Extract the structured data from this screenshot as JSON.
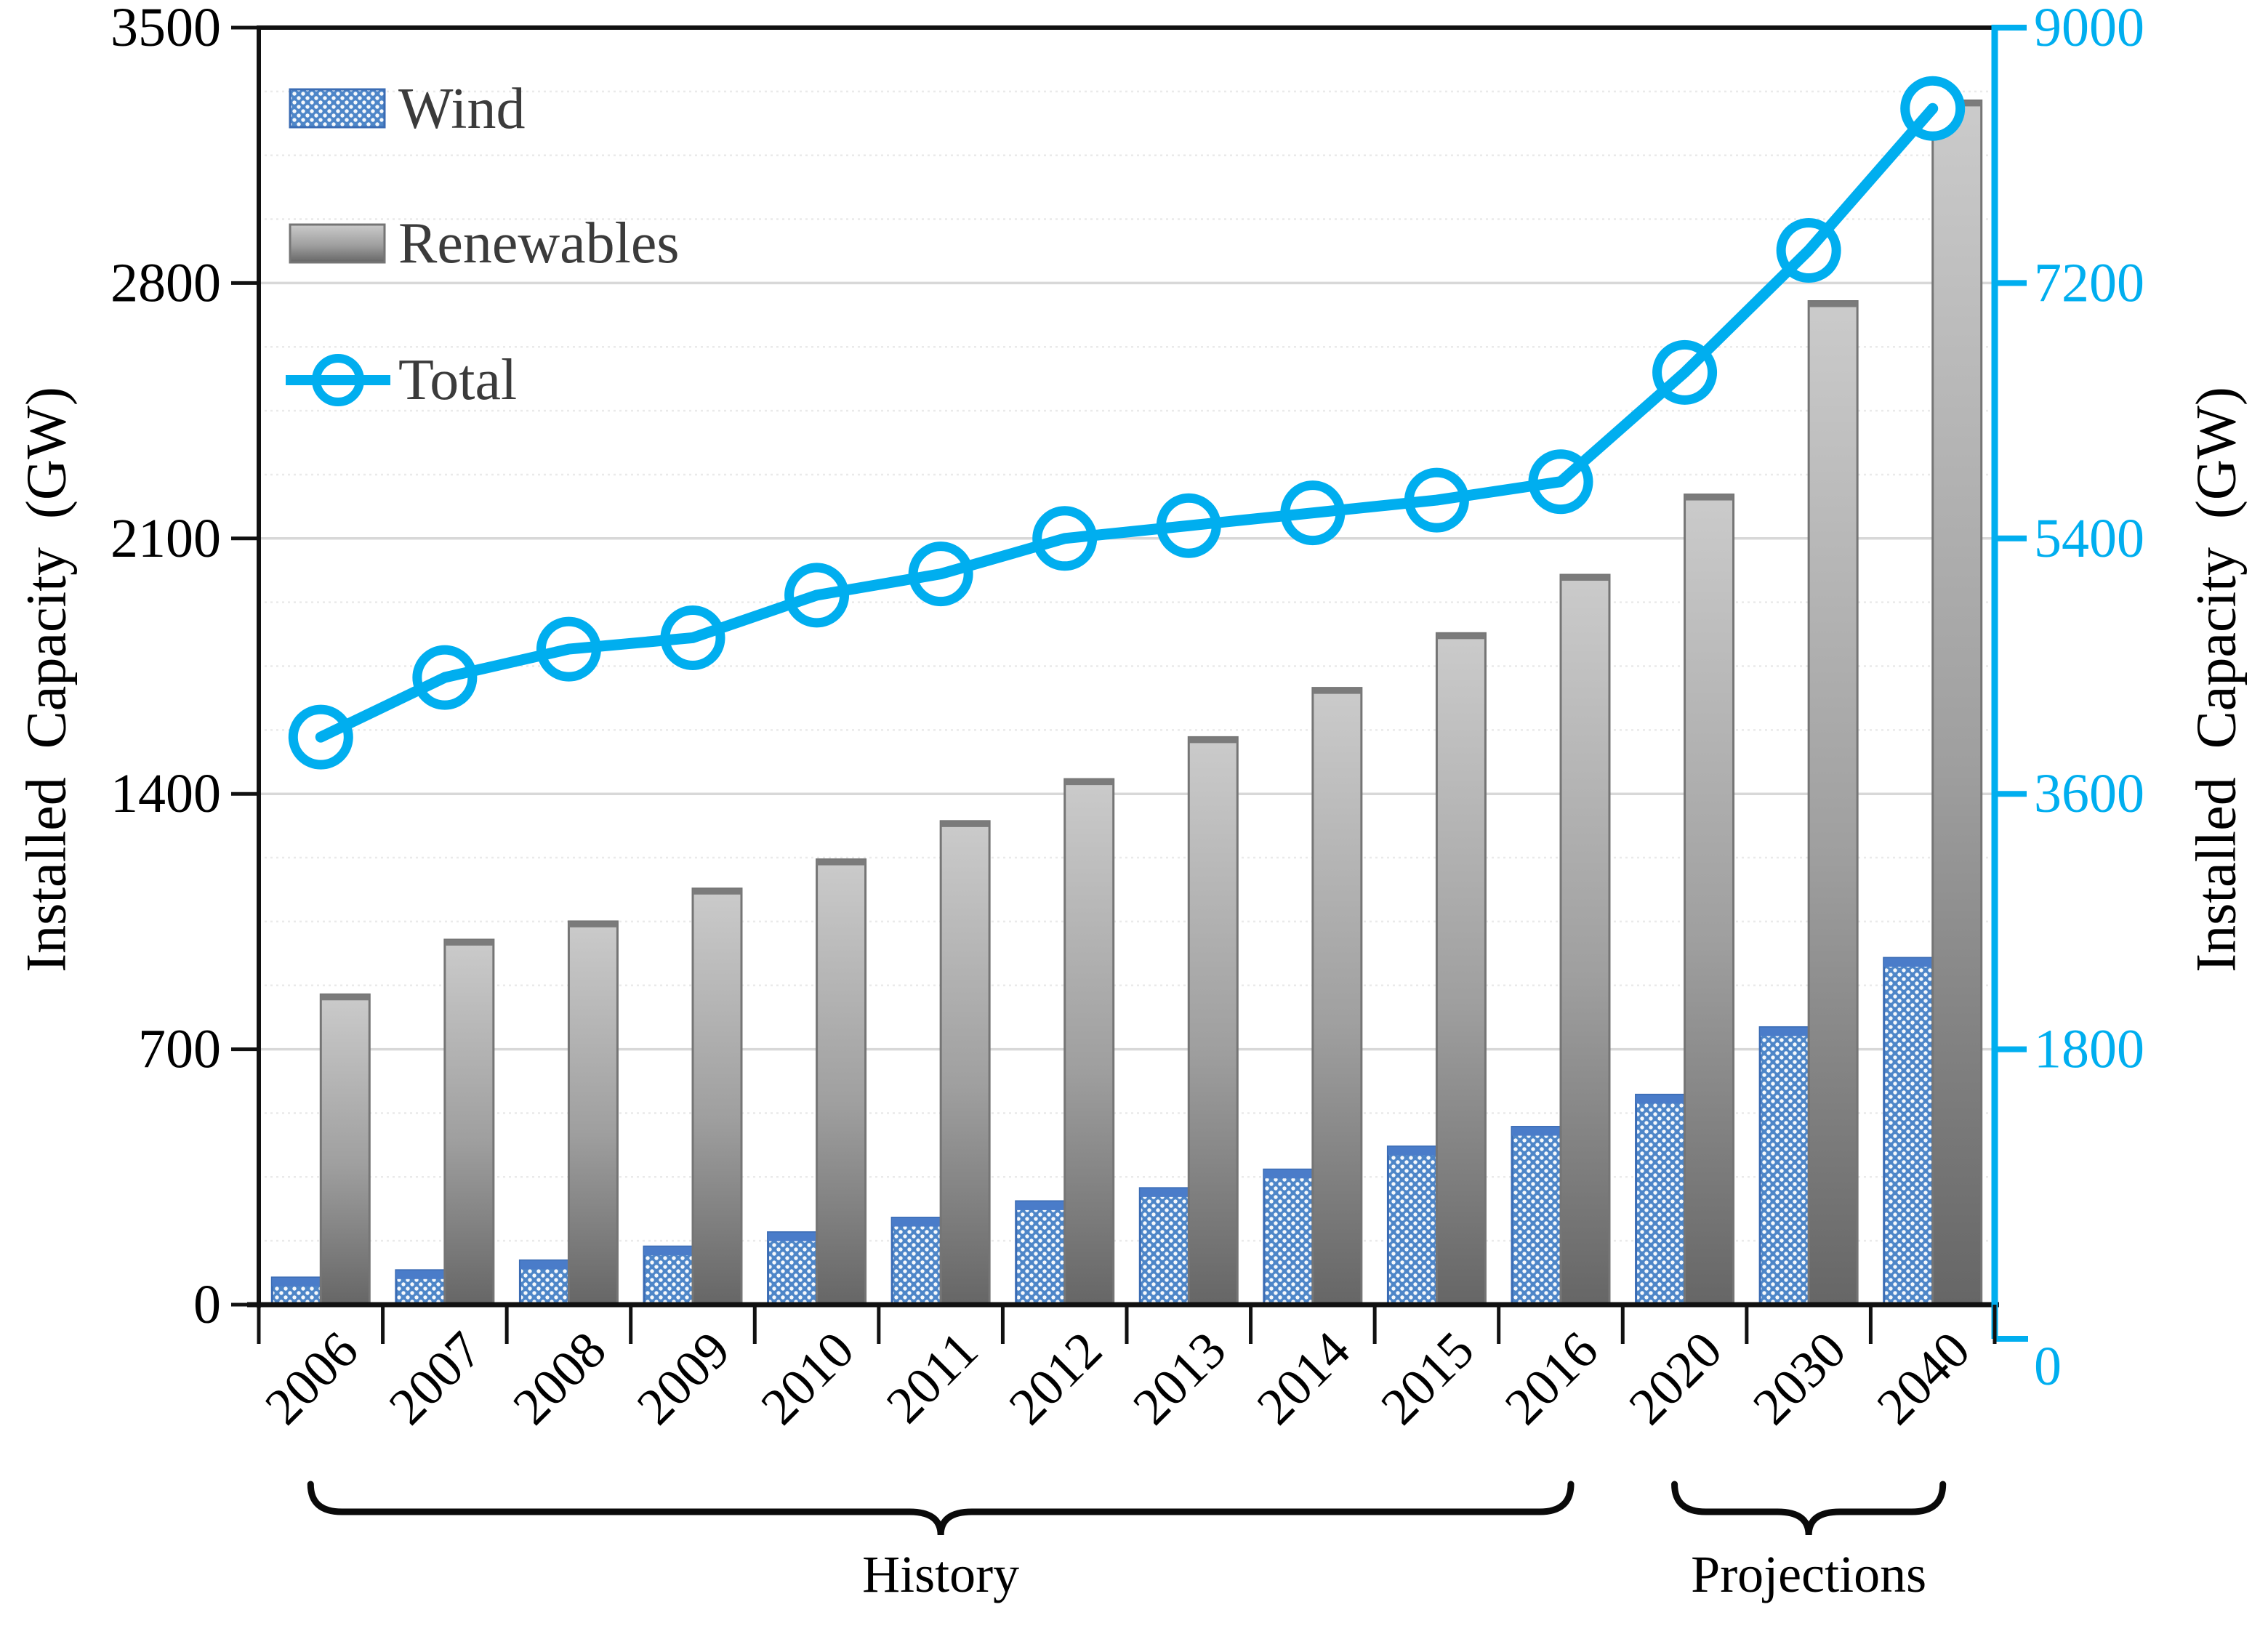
{
  "figure_title": "",
  "colors": {
    "accent_cyan": "#00AEEF",
    "wind_blue": "#4E86C8",
    "wind_blue_cap": "#4A7CC9",
    "wind_blue_border": "#3B6CB4",
    "gray_top": "#CBCBCB",
    "gray_mid": "#9F9F9F",
    "gray_bottom": "#666666",
    "gray_border": "#757575",
    "gray_cap": "#7B7B7B",
    "grid_major": "#D8D8D8",
    "grid_minor": "#EAEAEA",
    "spine_black": "#111111",
    "tick_text": "#000000",
    "legend_text": "#3B3B3B",
    "brace_black": "#0A0A0A",
    "marker_fill": "#FFFFFF"
  },
  "chart_data": {
    "type": "bar",
    "subtype": "combo-bar-line-dual-axis",
    "categories": [
      "2006",
      "2007",
      "2008",
      "2009",
      "2010",
      "2011",
      "2012",
      "2013",
      "2014",
      "2015",
      "2016",
      "2020",
      "2030",
      "2040"
    ],
    "series": [
      {
        "name": "Wind",
        "type": "bar",
        "axis": "left",
        "values": [
          74,
          94,
          121,
          159,
          198,
          238,
          283,
          319,
          370,
          433,
          487,
          575,
          760,
          950
        ]
      },
      {
        "name": "Renewables",
        "type": "bar",
        "axis": "left",
        "values": [
          850,
          1000,
          1050,
          1140,
          1220,
          1325,
          1440,
          1555,
          1690,
          1840,
          2000,
          2220,
          2750,
          3300
        ]
      },
      {
        "name": "Total",
        "type": "line",
        "axis": "right",
        "values": [
          4000,
          4420,
          4620,
          4700,
          5000,
          5150,
          5400,
          5490,
          5580,
          5670,
          5800,
          6570,
          7430,
          8430
        ]
      }
    ],
    "left_axis": {
      "label": "Installed  Capacity  (GW)",
      "range": [
        0,
        3500
      ],
      "ticks": [
        0,
        700,
        1400,
        2100,
        2800,
        3500
      ],
      "minor_unit": 175
    },
    "right_axis": {
      "label": "Installed  Capacity  (GW)",
      "range": [
        0,
        9000
      ],
      "ticks": [
        0,
        1800,
        3600,
        5400,
        7200,
        9000
      ]
    },
    "legend": {
      "position": "top-left",
      "entries": [
        "Wind",
        "Renewables",
        "Total"
      ]
    },
    "grid": {
      "major": true,
      "minor_dotted": true
    },
    "annotations": [
      {
        "label": "History",
        "from_index": 0,
        "to_index": 10
      },
      {
        "label": "Projections",
        "from_index": 11,
        "to_index": 13
      }
    ]
  }
}
